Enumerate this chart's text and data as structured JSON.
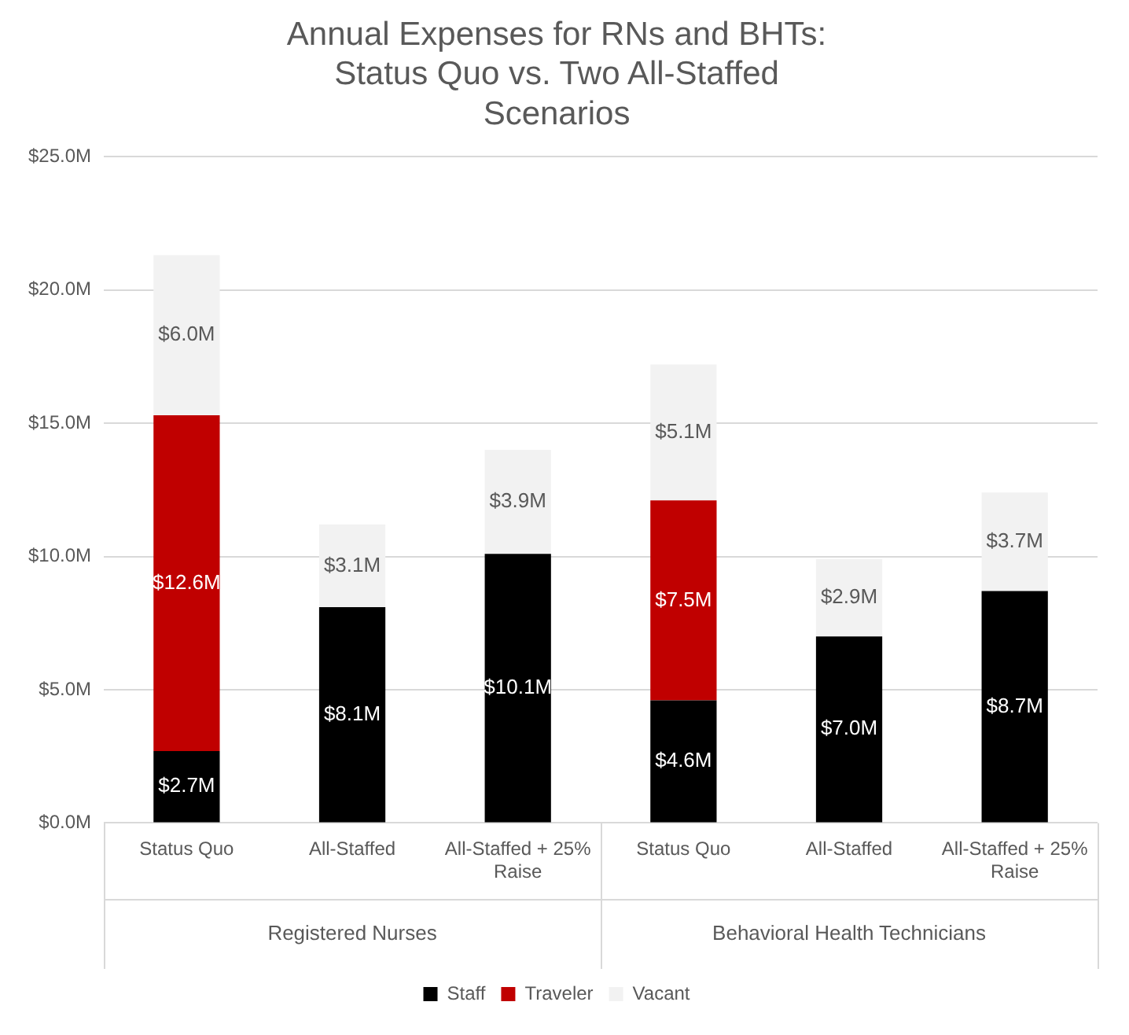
{
  "chart_data": {
    "type": "bar",
    "title": "Annual Expenses for RNs and BHTs: Status Quo vs. Two All-Staffed Scenarios",
    "categories": [
      "Status Quo",
      "All-Staffed",
      "All-Staffed + 25% Raise",
      "Status Quo",
      "All-Staffed",
      "All-Staffed + 25% Raise"
    ],
    "series": [
      {
        "name": "Staff",
        "color": "#000000",
        "values": [
          2.7,
          8.1,
          10.1,
          4.6,
          7.0,
          8.7
        ],
        "value_labels": [
          "$2.7M",
          "$8.1M",
          "$10.1M",
          "$4.6M",
          "$7.0M",
          "$8.7M"
        ]
      },
      {
        "name": "Traveler",
        "color": "#c00000",
        "values": [
          12.6,
          null,
          null,
          7.5,
          null,
          null
        ],
        "value_labels": [
          "$12.6M",
          null,
          null,
          "$7.5M",
          null,
          null
        ]
      },
      {
        "name": "Vacant",
        "color": "#f2f2f2",
        "values": [
          6.0,
          3.1,
          3.9,
          5.1,
          2.9,
          3.7
        ],
        "value_labels": [
          "$6.0M",
          "$3.1M",
          "$3.9M",
          "$5.1M",
          "$2.9M",
          "$3.7M"
        ]
      }
    ],
    "stacked": true,
    "ylim": [
      0,
      25
    ],
    "yticks": [
      {
        "value": 0,
        "label": "$0.0M"
      },
      {
        "value": 5,
        "label": "$5.0M"
      },
      {
        "value": 10,
        "label": "$10.0M"
      },
      {
        "value": 15,
        "label": "$15.0M"
      },
      {
        "value": 20,
        "label": "$20.0M"
      },
      {
        "value": 25,
        "label": "$25.0M"
      }
    ],
    "grid": "y",
    "legend": "bottom",
    "annotations": [
      "Registered Nurses",
      "Behavioral Health Technicians"
    ]
  }
}
